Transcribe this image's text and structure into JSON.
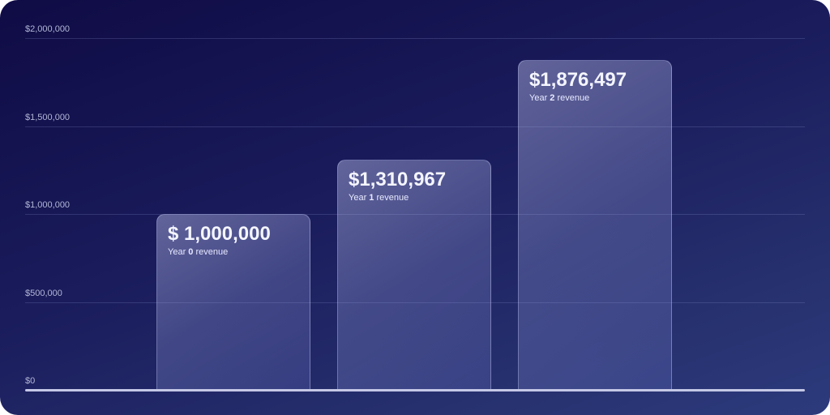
{
  "chart_data": {
    "type": "bar",
    "title": "",
    "xlabel": "",
    "ylabel": "",
    "ylim": [
      0,
      2000000
    ],
    "grid": true,
    "y_ticks": [
      {
        "value": 0,
        "label": "$0"
      },
      {
        "value": 500000,
        "label": "$500,000"
      },
      {
        "value": 1000000,
        "label": "$1,000,000"
      },
      {
        "value": 1500000,
        "label": "$1,500,000"
      },
      {
        "value": 2000000,
        "label": "$2,000,000"
      }
    ],
    "categories": [
      "Year 0",
      "Year 1",
      "Year 2"
    ],
    "values": [
      1000000,
      1310967,
      1876497
    ],
    "bars": [
      {
        "value": 1000000,
        "value_label": "$ 1,000,000",
        "caption_pre": "Year ",
        "caption_num": "0",
        "caption_post": " revenue"
      },
      {
        "value": 1310967,
        "value_label": "$1,310,967",
        "caption_pre": "Year ",
        "caption_num": "1",
        "caption_post": " revenue"
      },
      {
        "value": 1876497,
        "value_label": "$1,876,497",
        "caption_pre": "Year ",
        "caption_num": "2",
        "caption_post": " revenue"
      }
    ],
    "colors": {
      "background": "#1a1c5c",
      "bar": "#a3a9e6",
      "baseline": "#c5c8e6",
      "text": "#f4f5ff"
    }
  }
}
